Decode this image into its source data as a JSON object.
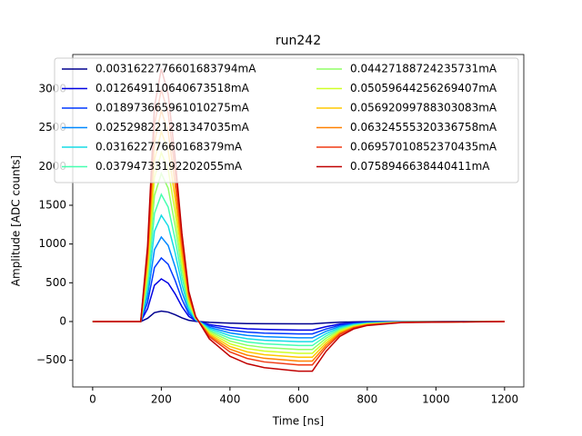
{
  "chart_data": {
    "type": "line",
    "title": "run242",
    "x_label": "Time [ns]",
    "y_label": "Amplitude [ADC counts]",
    "x": [
      0,
      140,
      160,
      180,
      200,
      220,
      240,
      260,
      280,
      300,
      340,
      400,
      450,
      500,
      600,
      640,
      680,
      720,
      760,
      800,
      900,
      1200
    ],
    "series": [
      {
        "name": "0.0031622776601683794mA",
        "color": "#00008f",
        "values": [
          0,
          0,
          41,
          115,
          135,
          122,
          88,
          47,
          16,
          3,
          -11,
          -21,
          -26,
          -28,
          -30,
          -30,
          -18,
          -9,
          -5,
          -2,
          -1,
          0
        ]
      },
      {
        "name": "0.012649110640673518mA",
        "color": "#0000e3",
        "values": [
          0,
          0,
          165,
          468,
          550,
          495,
          358,
          193,
          66,
          11,
          -39,
          -77,
          -94,
          -102,
          -110,
          -110,
          -66,
          -33,
          -17,
          -9,
          -2,
          0
        ]
      },
      {
        "name": "0.018973665961010275mA",
        "color": "#0038ff",
        "values": [
          0,
          0,
          246,
          697,
          820,
          738,
          533,
          287,
          98,
          16,
          -56,
          -112,
          -136,
          -149,
          -160,
          -160,
          -96,
          -48,
          -24,
          -13,
          -3,
          0
        ]
      },
      {
        "name": "0.025298221281347035mA",
        "color": "#0088ff",
        "values": [
          0,
          0,
          327,
          927,
          1090,
          981,
          709,
          382,
          131,
          22,
          -74,
          -147,
          -179,
          -195,
          -210,
          -210,
          -126,
          -63,
          -32,
          -17,
          -4,
          0
        ]
      },
      {
        "name": "0.03162277660168379mA",
        "color": "#16dce6",
        "values": [
          0,
          0,
          411,
          1165,
          1370,
          1233,
          891,
          480,
          164,
          27,
          -91,
          -182,
          -221,
          -242,
          -260,
          -260,
          -156,
          -78,
          -39,
          -21,
          -5,
          0
        ]
      },
      {
        "name": "0.03794733192202055mA",
        "color": "#46ffb0",
        "values": [
          0,
          0,
          492,
          1394,
          1640,
          1476,
          1066,
          574,
          197,
          33,
          -109,
          -217,
          -264,
          -288,
          -310,
          -310,
          -186,
          -93,
          -47,
          -25,
          -6,
          0
        ]
      },
      {
        "name": "0.04427188724235731mA",
        "color": "#90ff66",
        "values": [
          0,
          0,
          573,
          1624,
          1910,
          1719,
          1242,
          669,
          229,
          38,
          -126,
          -252,
          -306,
          -335,
          -360,
          -360,
          -216,
          -108,
          -54,
          -29,
          -7,
          0
        ]
      },
      {
        "name": "0.05059644256269407mA",
        "color": "#d0ff26",
        "values": [
          0,
          0,
          654,
          1853,
          2180,
          1962,
          1417,
          763,
          262,
          44,
          -144,
          -287,
          -349,
          -381,
          -410,
          -410,
          -246,
          -123,
          -62,
          -33,
          -8,
          0
        ]
      },
      {
        "name": "0.05692099788303083mA",
        "color": "#ffc800",
        "values": [
          0,
          0,
          735,
          2083,
          2450,
          2205,
          1593,
          858,
          294,
          49,
          -161,
          -322,
          -391,
          -428,
          -460,
          -460,
          -276,
          -138,
          -69,
          -37,
          -9,
          0
        ]
      },
      {
        "name": "0.06324555320336758mA",
        "color": "#ff8000",
        "values": [
          0,
          0,
          816,
          2312,
          2720,
          2448,
          1768,
          952,
          326,
          54,
          -179,
          -357,
          -434,
          -474,
          -510,
          -510,
          -306,
          -153,
          -77,
          -41,
          -10,
          0
        ]
      },
      {
        "name": "0.06957010852370435mA",
        "color": "#f03a14",
        "values": [
          0,
          0,
          897,
          2542,
          2990,
          2691,
          1944,
          1047,
          359,
          60,
          -196,
          -392,
          -476,
          -521,
          -560,
          -560,
          -336,
          -168,
          -84,
          -45,
          -11,
          0
        ]
      },
      {
        "name": "0.0758946638440411mA",
        "color": "#c00000",
        "values": [
          0,
          0,
          978,
          2771,
          3260,
          2934,
          2119,
          1141,
          391,
          65,
          -224,
          -448,
          -544,
          -595,
          -640,
          -640,
          -384,
          -192,
          -96,
          -51,
          -13,
          0
        ]
      }
    ],
    "xlim": [
      -58,
      1256
    ],
    "ylim": [
      -844,
      3445
    ],
    "xticks": [
      0,
      200,
      400,
      600,
      800,
      1000,
      1200
    ],
    "yticks": [
      {
        "value": -500,
        "label": "−500"
      },
      0,
      500,
      1000,
      1500,
      2000,
      2500,
      3000
    ],
    "legend": "upper-left",
    "legend_columns": 2
  }
}
